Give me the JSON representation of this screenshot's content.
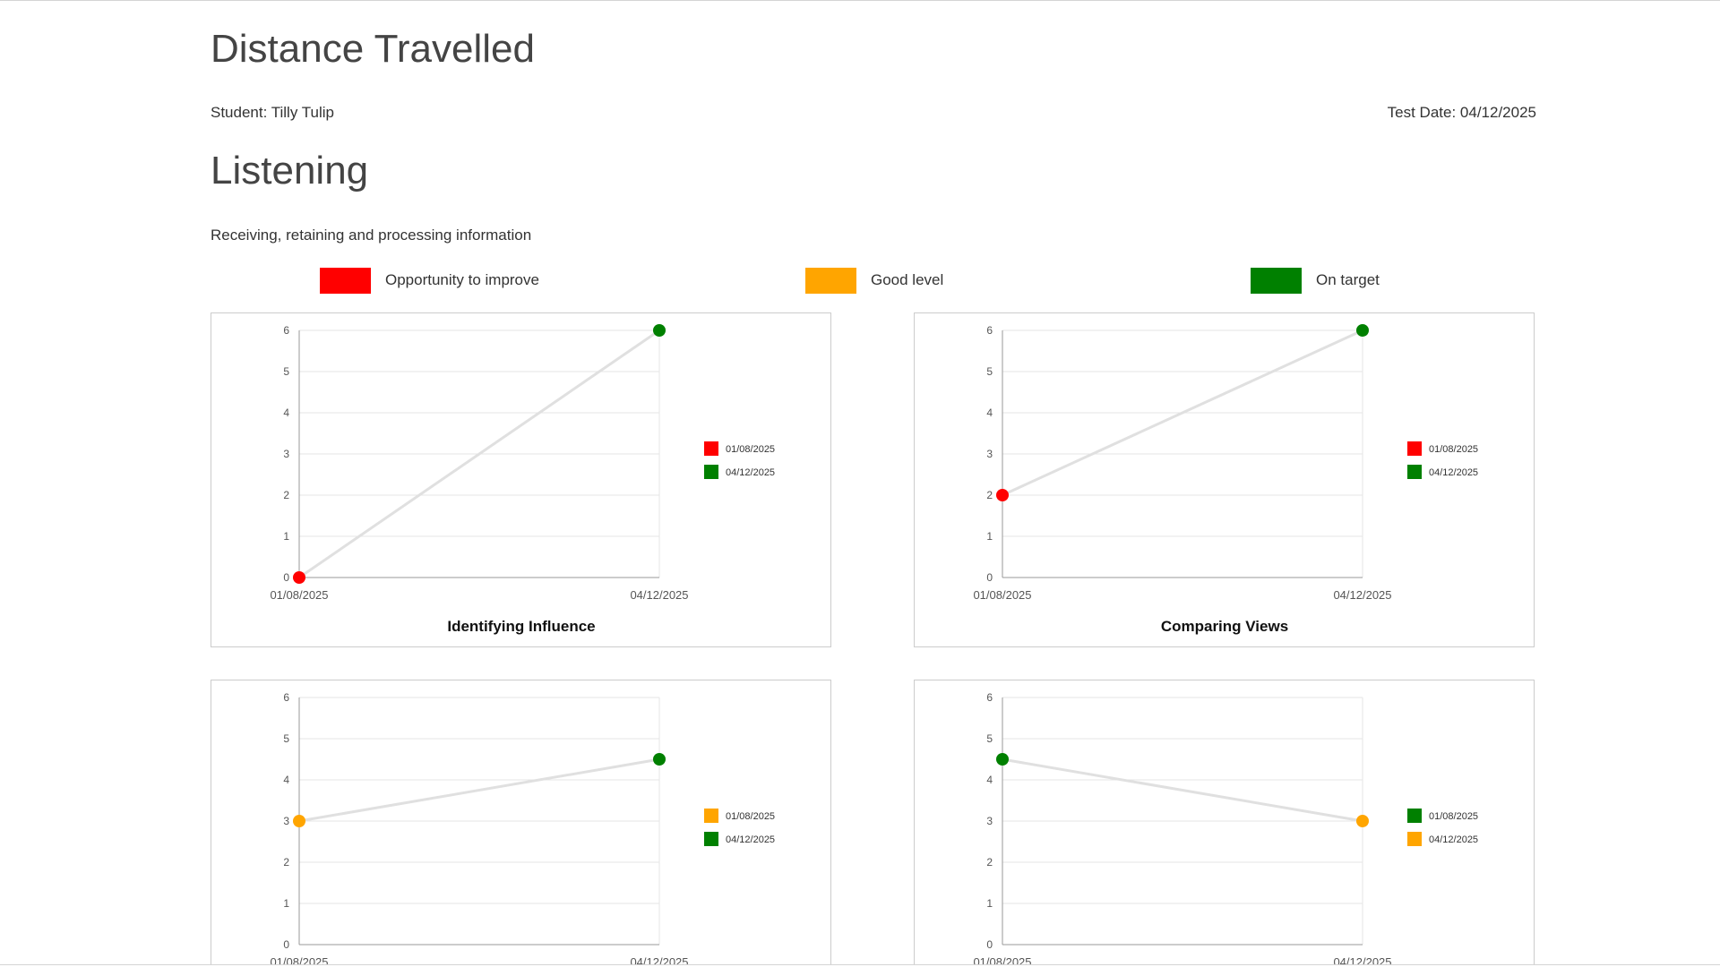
{
  "page": {
    "title": "Distance Travelled",
    "student": "Student: Tilly Tulip",
    "test_date": "Test Date: 04/12/2025"
  },
  "section": {
    "title": "Listening",
    "subtitle": "Receiving, retaining and processing information"
  },
  "colors": {
    "opportunity": "#ff0000",
    "good": "#ffa500",
    "target": "#008000",
    "line": "#e0e0e0",
    "grid": "#e6e6e6",
    "axis": "#999999"
  },
  "legend": [
    {
      "label": "Opportunity to improve",
      "color": "#ff0000"
    },
    {
      "label": "Good level",
      "color": "#ffa500"
    },
    {
      "label": "On target",
      "color": "#008000"
    }
  ],
  "chart_data": [
    {
      "type": "line",
      "title": "Identifying Influence",
      "x": [
        "01/08/2025",
        "04/12/2025"
      ],
      "y": [
        0,
        6
      ],
      "point_colors": [
        "#ff0000",
        "#008000"
      ],
      "ylim": [
        0,
        6
      ],
      "yticks": [
        0,
        1,
        2,
        3,
        4,
        5,
        6
      ],
      "grid": true,
      "legend": [
        {
          "label": "01/08/2025",
          "color": "#ff0000"
        },
        {
          "label": "04/12/2025",
          "color": "#008000"
        }
      ],
      "legend_position": "right"
    },
    {
      "type": "line",
      "title": "Comparing Views",
      "x": [
        "01/08/2025",
        "04/12/2025"
      ],
      "y": [
        2,
        6
      ],
      "point_colors": [
        "#ff0000",
        "#008000"
      ],
      "ylim": [
        0,
        6
      ],
      "yticks": [
        0,
        1,
        2,
        3,
        4,
        5,
        6
      ],
      "grid": true,
      "legend": [
        {
          "label": "01/08/2025",
          "color": "#ff0000"
        },
        {
          "label": "04/12/2025",
          "color": "#008000"
        }
      ],
      "legend_position": "right"
    },
    {
      "type": "line",
      "title": "",
      "x": [
        "01/08/2025",
        "04/12/2025"
      ],
      "y": [
        3,
        4.5
      ],
      "point_colors": [
        "#ffa500",
        "#008000"
      ],
      "ylim": [
        0,
        6
      ],
      "yticks": [
        0,
        1,
        2,
        3,
        4,
        5,
        6
      ],
      "grid": true,
      "legend": [
        {
          "label": "01/08/2025",
          "color": "#ffa500"
        },
        {
          "label": "04/12/2025",
          "color": "#008000"
        }
      ],
      "legend_position": "right"
    },
    {
      "type": "line",
      "title": "",
      "x": [
        "01/08/2025",
        "04/12/2025"
      ],
      "y": [
        4.5,
        3
      ],
      "point_colors": [
        "#008000",
        "#ffa500"
      ],
      "ylim": [
        0,
        6
      ],
      "yticks": [
        0,
        1,
        2,
        3,
        4,
        5,
        6
      ],
      "grid": true,
      "legend": [
        {
          "label": "01/08/2025",
          "color": "#008000"
        },
        {
          "label": "04/12/2025",
          "color": "#ffa500"
        }
      ],
      "legend_position": "right"
    }
  ]
}
